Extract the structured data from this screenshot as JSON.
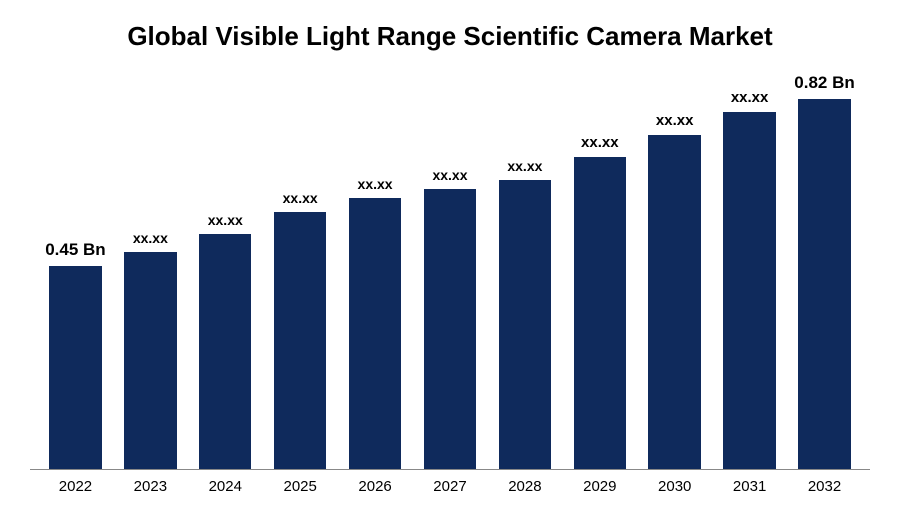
{
  "chart": {
    "type": "bar",
    "title": "Global Visible Light Range Scientific Camera Market",
    "title_fontsize": 26,
    "title_fontweight": 700,
    "title_color": "#000000",
    "background_color": "#ffffff",
    "axis_line_color": "#888888",
    "bar_color": "#0f2a5c",
    "bar_width_ratio": 0.7,
    "label_fontsize": 15,
    "label_fontweight": 600,
    "label_color": "#000000",
    "xtick_fontsize": 15,
    "xtick_color": "#000000",
    "ymax": 0.9,
    "categories": [
      "2022",
      "2023",
      "2024",
      "2025",
      "2026",
      "2027",
      "2028",
      "2029",
      "2030",
      "2031",
      "2032"
    ],
    "values": [
      0.45,
      0.48,
      0.52,
      0.57,
      0.6,
      0.62,
      0.64,
      0.69,
      0.74,
      0.79,
      0.82
    ],
    "value_labels": [
      "0.45 Bn",
      "xx.xx",
      "xx.xx",
      "xx.xx",
      "xx.xx",
      "xx.xx",
      "xx.xx",
      "xx.xx",
      "xx.xx",
      "xx.xx",
      "0.82 Bn"
    ],
    "label_bold_flags": [
      true,
      false,
      false,
      false,
      false,
      false,
      false,
      false,
      false,
      false,
      true
    ],
    "label_fontsizes": [
      17,
      14,
      14,
      14,
      14,
      14,
      14,
      15,
      15,
      15,
      17
    ]
  }
}
